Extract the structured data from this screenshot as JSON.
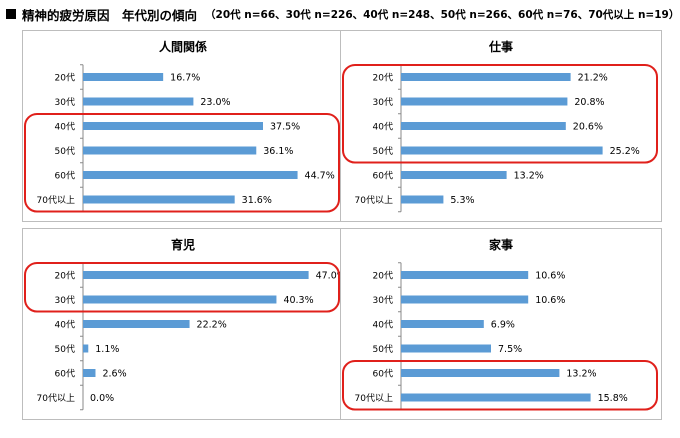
{
  "header": {
    "title": "精神的疲労原因　年代別の傾向",
    "subtitle": "（20代 n=66、30代 n=226、40代 n=248、50代 n=266、60代 n=76、70代以上 n=19）"
  },
  "colors": {
    "bar": "#5b9bd5",
    "highlight": "#e0201b",
    "axis": "#888888"
  },
  "chart_data": [
    {
      "type": "bar",
      "orientation": "horizontal",
      "title": "人間関係",
      "categories": [
        "20代",
        "30代",
        "40代",
        "50代",
        "60代",
        "70代以上"
      ],
      "values": [
        16.7,
        23.0,
        37.5,
        36.1,
        44.7,
        31.6
      ],
      "labels": [
        "16.7%",
        "23.0%",
        "37.5%",
        "36.1%",
        "44.7%",
        "31.6%"
      ],
      "xlim": [
        0,
        50
      ],
      "highlight": [
        2,
        5
      ]
    },
    {
      "type": "bar",
      "orientation": "horizontal",
      "title": "仕事",
      "categories": [
        "20代",
        "30代",
        "40代",
        "50代",
        "60代",
        "70代以上"
      ],
      "values": [
        21.2,
        20.8,
        20.6,
        25.2,
        13.2,
        5.3
      ],
      "labels": [
        "21.2%",
        "20.8%",
        "20.6%",
        "25.2%",
        "13.2%",
        "5.3%"
      ],
      "xlim": [
        0,
        30
      ],
      "highlight": [
        0,
        3
      ]
    },
    {
      "type": "bar",
      "orientation": "horizontal",
      "title": "育児",
      "categories": [
        "20代",
        "30代",
        "40代",
        "50代",
        "60代",
        "70代以上"
      ],
      "values": [
        47.0,
        40.3,
        22.2,
        1.1,
        2.6,
        0.0
      ],
      "labels": [
        "47.0%",
        "40.3%",
        "22.2%",
        "1.1%",
        "2.6%",
        "0.0%"
      ],
      "xlim": [
        0,
        50
      ],
      "highlight": [
        0,
        1
      ]
    },
    {
      "type": "bar",
      "orientation": "horizontal",
      "title": "家事",
      "categories": [
        "20代",
        "30代",
        "40代",
        "50代",
        "60代",
        "70代以上"
      ],
      "values": [
        10.6,
        10.6,
        6.9,
        7.5,
        13.2,
        15.8
      ],
      "labels": [
        "10.6%",
        "10.6%",
        "6.9%",
        "7.5%",
        "13.2%",
        "15.8%"
      ],
      "xlim": [
        0,
        20
      ],
      "highlight": [
        4,
        5
      ]
    }
  ]
}
